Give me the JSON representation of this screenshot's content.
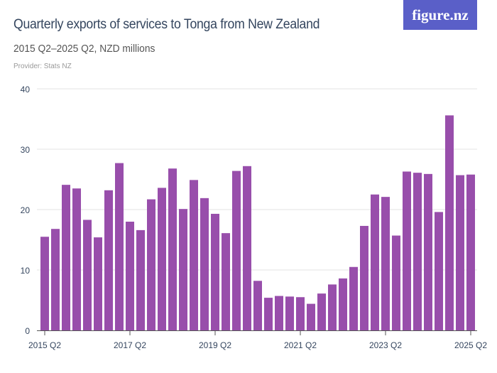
{
  "header": {
    "title": "Quarterly exports of services to Tonga from New Zealand",
    "subtitle": "2015 Q2–2025 Q2, NZD millions",
    "provider": "Provider: Stats NZ",
    "logo": "figure.nz"
  },
  "colors": {
    "bar": "#984eab",
    "logo_bg": "#5a5fc8",
    "grid": "#e3e3e3",
    "text": "#34455e"
  },
  "chart_data": {
    "type": "bar",
    "title": "Quarterly exports of services to Tonga from New Zealand",
    "subtitle": "2015 Q2–2025 Q2, NZD millions",
    "ylim": [
      0,
      40
    ],
    "yticks": [
      0,
      10,
      20,
      30,
      40
    ],
    "grid": true,
    "xtick_labels": [
      "2015 Q2",
      "2017 Q2",
      "2019 Q2",
      "2021 Q2",
      "2023 Q2",
      "2025 Q2"
    ],
    "categories": [
      "2015 Q2",
      "2015 Q3",
      "2015 Q4",
      "2016 Q1",
      "2016 Q2",
      "2016 Q3",
      "2016 Q4",
      "2017 Q1",
      "2017 Q2",
      "2017 Q3",
      "2017 Q4",
      "2018 Q1",
      "2018 Q2",
      "2018 Q3",
      "2018 Q4",
      "2019 Q1",
      "2019 Q2",
      "2019 Q3",
      "2019 Q4",
      "2020 Q1",
      "2020 Q2",
      "2020 Q3",
      "2020 Q4",
      "2021 Q1",
      "2021 Q2",
      "2021 Q3",
      "2021 Q4",
      "2022 Q1",
      "2022 Q2",
      "2022 Q3",
      "2022 Q4",
      "2023 Q1",
      "2023 Q2",
      "2023 Q3",
      "2023 Q4",
      "2024 Q1",
      "2024 Q2",
      "2024 Q3",
      "2024 Q4",
      "2025 Q1",
      "2025 Q2"
    ],
    "values": [
      15.5,
      16.8,
      24.1,
      23.5,
      18.3,
      15.4,
      23.2,
      27.7,
      18.0,
      16.6,
      21.7,
      23.6,
      26.8,
      20.1,
      24.9,
      21.9,
      19.3,
      16.1,
      26.4,
      27.2,
      8.2,
      5.4,
      5.7,
      5.6,
      5.5,
      4.4,
      6.1,
      7.6,
      8.6,
      10.5,
      17.3,
      22.5,
      22.1,
      15.7,
      26.3,
      26.1,
      25.9,
      19.6,
      35.6,
      25.7,
      25.8
    ]
  }
}
